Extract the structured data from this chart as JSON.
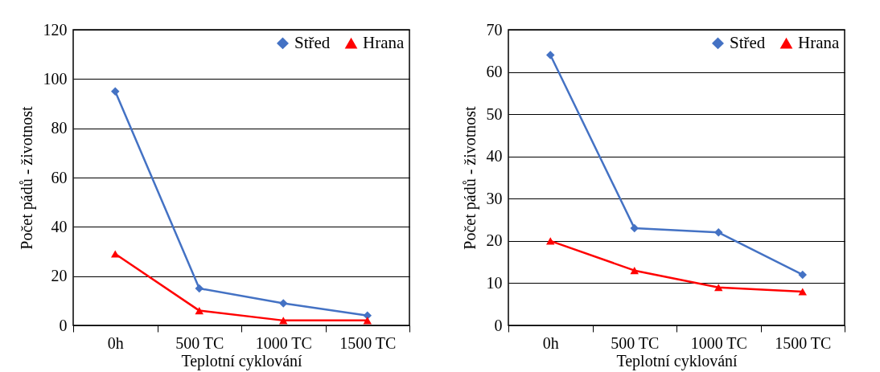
{
  "chart_data": [
    {
      "type": "line",
      "categories": [
        "0h",
        "500 TC",
        "1000 TC",
        "1500 TC"
      ],
      "xlabel": "Teplotní cyklování",
      "ylabel": "Počet pádů - životnost",
      "ylim": [
        0,
        120
      ],
      "yticks": [
        0,
        20,
        40,
        60,
        80,
        100,
        120
      ],
      "grid": "y",
      "legend": "top right",
      "line_style": "solid",
      "series": [
        {
          "name": "Střed",
          "color": "#4472c4",
          "marker": "diamond",
          "values": [
            95,
            15,
            9,
            4
          ]
        },
        {
          "name": "Hrana",
          "color": "#ff0000",
          "marker": "triangle",
          "values": [
            29,
            6,
            2,
            2
          ]
        }
      ]
    },
    {
      "type": "line",
      "categories": [
        "0h",
        "500 TC",
        "1000 TC",
        "1500 TC"
      ],
      "xlabel": "Teplotní cyklování",
      "ylabel": "Počet pádů - životnost",
      "ylim": [
        0,
        70
      ],
      "yticks": [
        0,
        10,
        20,
        30,
        40,
        50,
        60,
        70
      ],
      "grid": "y",
      "legend": "top right",
      "line_style": "solid",
      "series": [
        {
          "name": "Střed",
          "color": "#4472c4",
          "marker": "diamond",
          "values": [
            64,
            23,
            22,
            12
          ]
        },
        {
          "name": "Hrana",
          "color": "#ff0000",
          "marker": "triangle",
          "values": [
            20,
            13,
            9,
            8
          ]
        }
      ]
    }
  ]
}
